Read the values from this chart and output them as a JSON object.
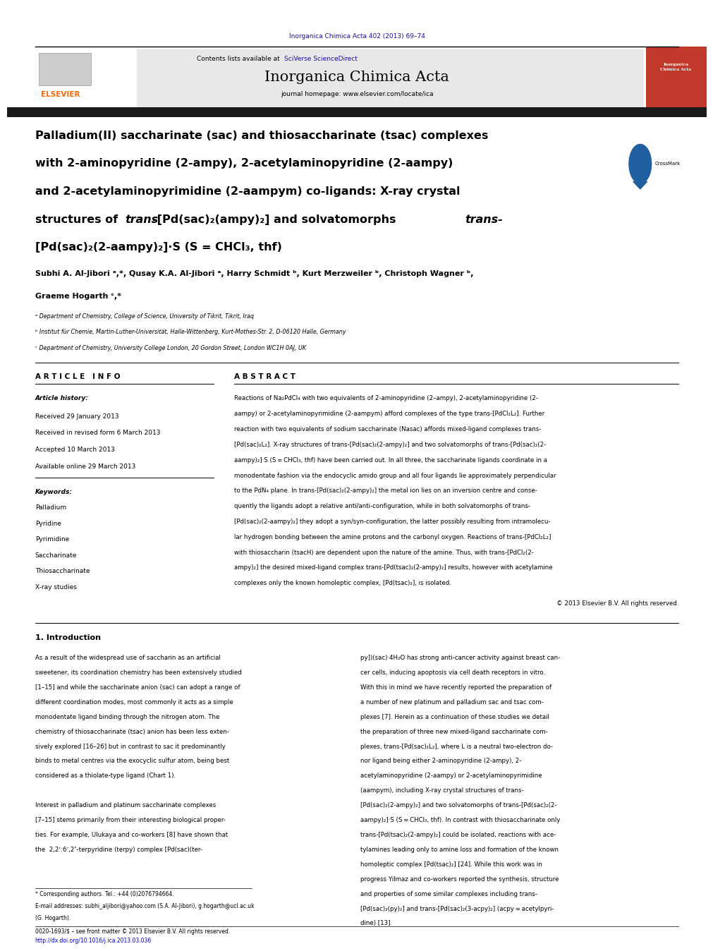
{
  "page_width": 9.92,
  "page_height": 13.23,
  "bg_color": "#ffffff",
  "journal_ref_text": "Inorganica Chimica Acta 402 (2013) 69–74",
  "journal_ref_color": "#1a0dab",
  "contents_text": "Contents lists available at ",
  "sciverse_text": "SciVerse ScienceDirect",
  "journal_name": "Inorganica Chimica Acta",
  "journal_homepage": "journal homepage: www.elsevier.com/locate/ica",
  "header_bg": "#e8e8e8",
  "black_bar_color": "#1a1a1a",
  "elsevier_color": "#ff6600",
  "article_info_header": "A R T I C L E   I N F O",
  "abstract_header": "A B S T R A C T",
  "article_history_label": "Article history:",
  "received": "Received 29 January 2013",
  "received_revised": "Received in revised form 6 March 2013",
  "accepted": "Accepted 10 March 2013",
  "available": "Available online 29 March 2013",
  "keywords_label": "Keywords:",
  "keywords": [
    "Palladium",
    "Pyridine",
    "Pyrimidine",
    "Saccharinate",
    "Thiosaccharinate",
    "X-ray studies"
  ],
  "abstract_text": "Reactions of Na₂PdCl₄ with two equivalents of 2-aminopyridine (2–ampy), 2-acetylaminopyridine (2-aampy) or 2-acetylaminopyrimidine (2-aampym) afford complexes of the type trans-[PdCl₂L₂]. Further reaction with two equivalents of sodium saccharinate (Nasac) affords mixed-ligand complexes trans-[Pd(sac)₂L₂]. X-ray structures of trans-[Pd(sac)₂(2-ampy)₂] and two solvatomorphs of trans-[Pd(sac)₂(2-aampy)₂]·S (S = CHCl₃, thf) have been carried out. In all three, the saccharinate ligands coordinate in a monodentate fashion via the endocyclic amido group and all four ligands lie approximately perpendicular to the PdN₄ plane. In trans-[Pd(sac)₂(2-ampy)₂] the metal ion lies on an inversion centre and consequently the ligands adopt a relative anti/anti-configuration, while in both solvatomorphs of trans-[Pd(sac)₂(2-aampy)₂] they adopt a syn/syn-configuration, the latter possibly resulting from intramolecular hydrogen bonding between the amine protons and the carbonyl oxygen. Reactions of trans-[PdCl₂L₂] with thiosaccharin (tsacH) are dependent upon the nature of the amine. Thus, with trans-[PdCl₂(2-ampy)₂] the desired mixed-ligand complex trans-[Pd(tsac)₂(2-ampy)₂] results, however with acetylamine complexes only the known homoleptic complex, [Pd(tsac)₂], is isolated.",
  "copyright": "© 2013 Elsevier B.V. All rights reserved.",
  "intro_header": "1. Introduction",
  "footnote1": "* Corresponding authors. Tel.: +44 (0)2076794664.",
  "footnote2": "E-mail addresses: subhi_aljibori@yahoo.com (S.A. Al-Jibori), g.hogarth@ucl.ac.uk",
  "footnote3": "(G. Hogarth).",
  "issn_text": "0020-1693/$ – see front matter © 2013 Elsevier B.V. All rights reserved.",
  "doi_text": "http://dx.doi.org/10.1016/j.ica.2013.03.036",
  "link_color": "#0000cc",
  "blue_link_color": "#1a0dab"
}
